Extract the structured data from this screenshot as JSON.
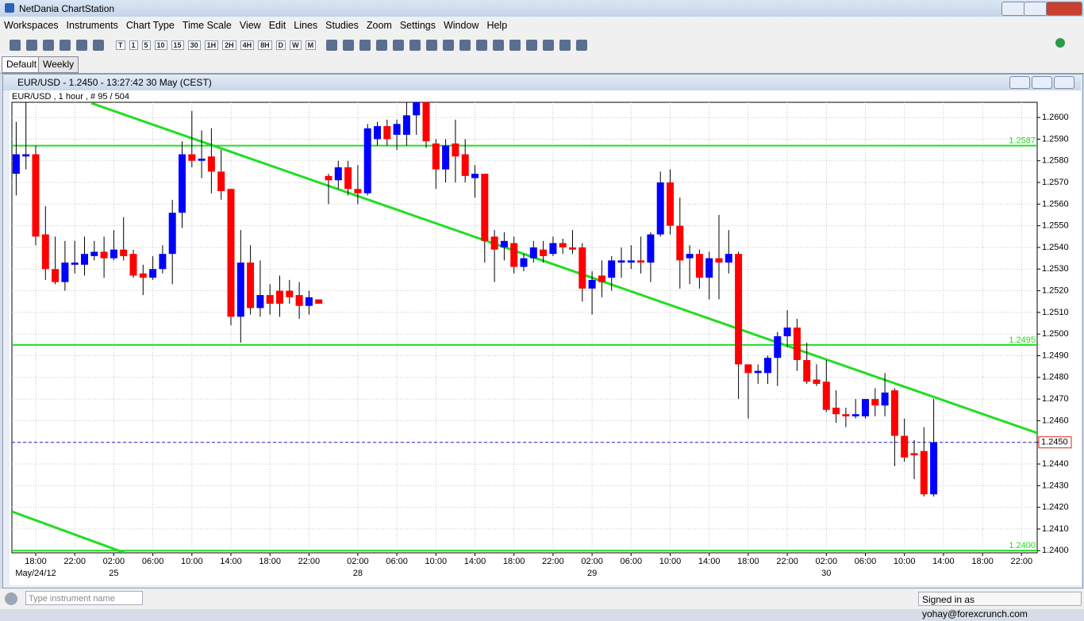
{
  "window": {
    "title": "NetDania ChartStation",
    "menu": [
      "Workspaces",
      "Instruments",
      "Chart Type",
      "Time Scale",
      "View",
      "Edit",
      "Lines",
      "Studies",
      "Zoom",
      "Settings",
      "Window",
      "Help"
    ],
    "toolbar_buttons": [
      "T",
      "1",
      "5",
      "10",
      "15",
      "30",
      "1H",
      "2H",
      "4H",
      "8H",
      "D",
      "W",
      "M"
    ],
    "tabs": [
      "Default",
      "Weekly"
    ],
    "chart_window_title": "EUR/USD - 1.2450 - 13:27:42  30 May (CEST)",
    "search_placeholder": "Type instrument name",
    "status": "Signed in as yohay@forexcrunch.com"
  },
  "chart_data": {
    "type": "candlestick",
    "label": "EUR/USD , 1 hour , # 95 / 504",
    "categories": [
      null,
      null,
      "18:00",
      null,
      null,
      null,
      "22:00",
      null,
      null,
      null,
      "02:00",
      null,
      null,
      null,
      "06:00",
      null,
      null,
      null,
      "10:00",
      null,
      null,
      null,
      "14:00",
      null,
      null,
      null,
      "18:00",
      null,
      null,
      null,
      "22:00",
      null,
      null,
      null,
      null,
      "02:00",
      null,
      null,
      null,
      "06:00",
      null,
      null,
      null,
      "10:00",
      null,
      null,
      null,
      "14:00",
      null,
      null,
      null,
      "18:00",
      null,
      null,
      null,
      "22:00",
      null,
      null,
      null,
      "02:00",
      null,
      null,
      null,
      "06:00",
      null,
      null,
      null,
      "10:00",
      null,
      null,
      null,
      "14:00",
      null,
      null,
      null,
      "18:00",
      null,
      null,
      null,
      "22:00",
      null,
      null,
      null,
      "02:00",
      null,
      null,
      null,
      "06:00",
      null,
      null,
      null,
      "10:00",
      null,
      null,
      null,
      "14:00",
      null,
      null,
      null,
      "18:00",
      null,
      null,
      null,
      "22:00"
    ],
    "dates": [
      null,
      null,
      "May/24/12",
      null,
      null,
      null,
      null,
      null,
      null,
      null,
      "25",
      null,
      null,
      null,
      null,
      null,
      null,
      null,
      null,
      null,
      null,
      null,
      null,
      null,
      null,
      null,
      null,
      null,
      null,
      null,
      null,
      null,
      null,
      null,
      null,
      "28",
      null,
      null,
      null,
      null,
      null,
      null,
      null,
      null,
      null,
      null,
      null,
      null,
      null,
      null,
      null,
      null,
      null,
      null,
      null,
      null,
      null,
      null,
      null,
      "29",
      null,
      null,
      null,
      null,
      null,
      null,
      null,
      null,
      null,
      null,
      null,
      null,
      null,
      null,
      null,
      null,
      null,
      null,
      null,
      null,
      null,
      null,
      null,
      "30",
      null,
      null,
      null,
      null,
      null,
      null,
      null,
      null,
      null,
      null,
      null,
      null,
      null,
      null,
      null,
      null,
      null,
      null,
      null,
      null
    ],
    "open": [
      1.2574,
      1.2582,
      1.2583,
      1.2546,
      1.253,
      1.2524,
      1.2532,
      1.2532,
      1.2536,
      1.2538,
      1.2535,
      1.2539,
      1.2537,
      1.2528,
      1.2526,
      1.253,
      1.2537,
      1.2556,
      1.2583,
      1.258,
      1.2582,
      1.2575,
      1.2567,
      1.2508,
      1.2533,
      1.2512,
      1.2518,
      1.252,
      1.252,
      1.2518,
      1.2513,
      1.2516,
      1.2573,
      1.2571,
      1.2577,
      1.2567,
      1.2565,
      1.259,
      1.2596,
      1.2592,
      1.2592,
      1.2601,
      1.2608,
      1.2588,
      1.2576,
      1.2588,
      1.2583,
      1.2572,
      1.2574,
      1.2545,
      1.254,
      1.2542,
      1.2531,
      1.2535,
      1.2539,
      1.2537,
      1.2542,
      1.254,
      1.254,
      1.2521,
      1.2527,
      1.2526,
      1.2533,
      1.2533,
      1.2534,
      1.2533,
      1.2546,
      1.257,
      1.255,
      1.2535,
      1.2537,
      1.2526,
      1.2535,
      1.2533,
      1.2537,
      1.2486,
      1.2482,
      1.2482,
      1.2489,
      1.2499,
      1.2503,
      1.2488,
      1.2479,
      1.2478,
      1.2466,
      1.2463,
      1.2462,
      1.2462,
      1.247,
      1.2467,
      1.2474,
      1.2453,
      1.2445,
      1.2446,
      1.2426,
      null,
      null,
      null,
      null,
      null,
      null,
      null,
      null,
      null
    ],
    "high": [
      1.2598,
      1.2607,
      1.2587,
      1.2559,
      1.2545,
      1.2543,
      1.2543,
      1.2545,
      1.2543,
      1.2545,
      1.2548,
      1.2554,
      1.2539,
      1.2532,
      1.2536,
      1.2541,
      1.2562,
      1.2589,
      1.2603,
      1.2594,
      1.2595,
      1.2585,
      1.2567,
      1.2548,
      1.2541,
      1.2534,
      1.2523,
      1.2527,
      1.2525,
      1.2524,
      1.252,
      1.2516,
      1.2574,
      1.258,
      1.258,
      1.2578,
      1.2597,
      1.2598,
      1.2599,
      1.2599,
      1.2608,
      1.2609,
      1.2608,
      1.259,
      1.259,
      1.2599,
      1.259,
      1.2578,
      1.2574,
      1.2548,
      1.2547,
      1.2545,
      1.2537,
      1.2543,
      1.2543,
      1.2545,
      1.2544,
      1.2548,
      1.2542,
      1.2529,
      1.2534,
      1.2536,
      1.254,
      1.2541,
      1.2545,
      1.2547,
      1.2575,
      1.2576,
      1.2563,
      1.2541,
      1.2539,
      1.2538,
      1.2555,
      1.2548,
      1.2538,
      1.2486,
      1.2486,
      1.249,
      1.2501,
      1.2511,
      1.2507,
      1.2496,
      1.2486,
      1.2488,
      1.2474,
      1.2466,
      1.247,
      1.247,
      1.2475,
      1.2482,
      1.2475,
      1.2461,
      1.2451,
      1.2457,
      1.247,
      null,
      null,
      null,
      null,
      null,
      null,
      null,
      null,
      null
    ],
    "low": [
      1.2564,
      1.2576,
      1.2541,
      1.2525,
      1.2523,
      1.252,
      1.2528,
      1.2527,
      1.2534,
      1.2526,
      1.2534,
      1.2534,
      1.2526,
      1.2518,
      1.2525,
      1.2528,
      1.2523,
      1.2549,
      1.2577,
      1.2572,
      1.2565,
      1.2562,
      1.2504,
      1.2496,
      1.2509,
      1.2508,
      1.2509,
      1.2508,
      1.2514,
      1.2507,
      1.2509,
      1.2514,
      1.256,
      1.2567,
      1.2564,
      1.256,
      1.2564,
      1.2587,
      1.2587,
      1.2585,
      1.2587,
      1.2592,
      1.2586,
      1.2567,
      1.257,
      1.257,
      1.257,
      1.2563,
      1.2533,
      1.2524,
      1.2534,
      1.2528,
      1.2529,
      1.2533,
      1.2533,
      1.2536,
      1.2537,
      1.2537,
      1.2515,
      1.2509,
      1.2517,
      1.252,
      1.2526,
      1.253,
      1.2528,
      1.2524,
      1.2545,
      1.2546,
      1.2521,
      1.2523,
      1.2521,
      1.2516,
      1.2516,
      1.2528,
      1.247,
      1.2461,
      1.2477,
      1.2477,
      1.2476,
      1.2494,
      1.2483,
      1.2477,
      1.2476,
      1.2464,
      1.2459,
      1.2457,
      1.2461,
      1.2461,
      1.2462,
      1.2462,
      1.2439,
      1.2441,
      1.2433,
      1.2425,
      1.2425,
      null,
      null,
      null,
      null,
      null,
      null,
      null,
      null,
      null
    ],
    "close": [
      1.2583,
      1.2583,
      1.2545,
      1.253,
      1.2524,
      1.2533,
      1.2533,
      1.2537,
      1.2538,
      1.2535,
      1.2539,
      1.2536,
      1.2527,
      1.2526,
      1.253,
      1.2537,
      1.2556,
      1.2583,
      1.258,
      1.2581,
      1.2575,
      1.2566,
      1.2508,
      1.2533,
      1.2512,
      1.2518,
      1.2514,
      1.2514,
      1.2517,
      1.2513,
      1.2517,
      1.2514,
      1.2571,
      1.2577,
      1.2567,
      1.2565,
      1.2595,
      1.2596,
      1.259,
      1.2597,
      1.2601,
      1.2608,
      1.2589,
      1.2576,
      1.2587,
      1.2582,
      1.2573,
      1.2574,
      1.2543,
      1.2539,
      1.2543,
      1.2531,
      1.2535,
      1.254,
      1.2536,
      1.2542,
      1.254,
      1.2539,
      1.2521,
      1.2525,
      1.2524,
      1.2534,
      1.2534,
      1.2534,
      1.2533,
      1.2546,
      1.257,
      1.255,
      1.2534,
      1.2537,
      1.2526,
      1.2535,
      1.2533,
      1.2537,
      1.2486,
      1.2482,
      1.2483,
      1.2489,
      1.2499,
      1.2503,
      1.2488,
      1.2478,
      1.2477,
      1.2465,
      1.2463,
      1.2462,
      1.2463,
      1.247,
      1.2467,
      1.2473,
      1.2453,
      1.2443,
      1.2444,
      1.2426,
      1.245,
      null,
      null,
      null,
      null,
      null,
      null,
      null,
      null,
      null
    ],
    "up_color": "#0000ff",
    "down_color": "#ff0000",
    "level_color": "#22dd22",
    "last_color": "#2020cc",
    "ylim": [
      1.2399,
      1.2607
    ],
    "yticks": [
      {
        "value": 1.24,
        "label": "1.2400"
      },
      {
        "value": 1.241,
        "label": "1.2410"
      },
      {
        "value": 1.242,
        "label": "1.2420"
      },
      {
        "value": 1.243,
        "label": "1.2430"
      },
      {
        "value": 1.244,
        "label": "1.2440"
      },
      {
        "value": 1.245,
        "label": "1.2450"
      },
      {
        "value": 1.246,
        "label": "1.2460"
      },
      {
        "value": 1.247,
        "label": "1.2470"
      },
      {
        "value": 1.248,
        "label": "1.2480"
      },
      {
        "value": 1.249,
        "label": "1.2490"
      },
      {
        "value": 1.25,
        "label": "1.2500"
      },
      {
        "value": 1.251,
        "label": "1.2510"
      },
      {
        "value": 1.252,
        "label": "1.2520"
      },
      {
        "value": 1.253,
        "label": "1.2530"
      },
      {
        "value": 1.254,
        "label": "1.2540"
      },
      {
        "value": 1.255,
        "label": "1.2550"
      },
      {
        "value": 1.256,
        "label": "1.2560"
      },
      {
        "value": 1.257,
        "label": "1.2570"
      },
      {
        "value": 1.258,
        "label": "1.2580"
      },
      {
        "value": 1.259,
        "label": "1.2590"
      },
      {
        "value": 1.26,
        "label": "1.2600"
      }
    ],
    "grid": true,
    "levels": [
      {
        "value": 1.2587,
        "label": "1.2587"
      },
      {
        "value": 1.2495,
        "label": "1.2495"
      },
      {
        "value": 1.24,
        "label": "1.2400"
      }
    ],
    "last_price": {
      "value": 1.245,
      "label": "1.2450"
    }
  }
}
